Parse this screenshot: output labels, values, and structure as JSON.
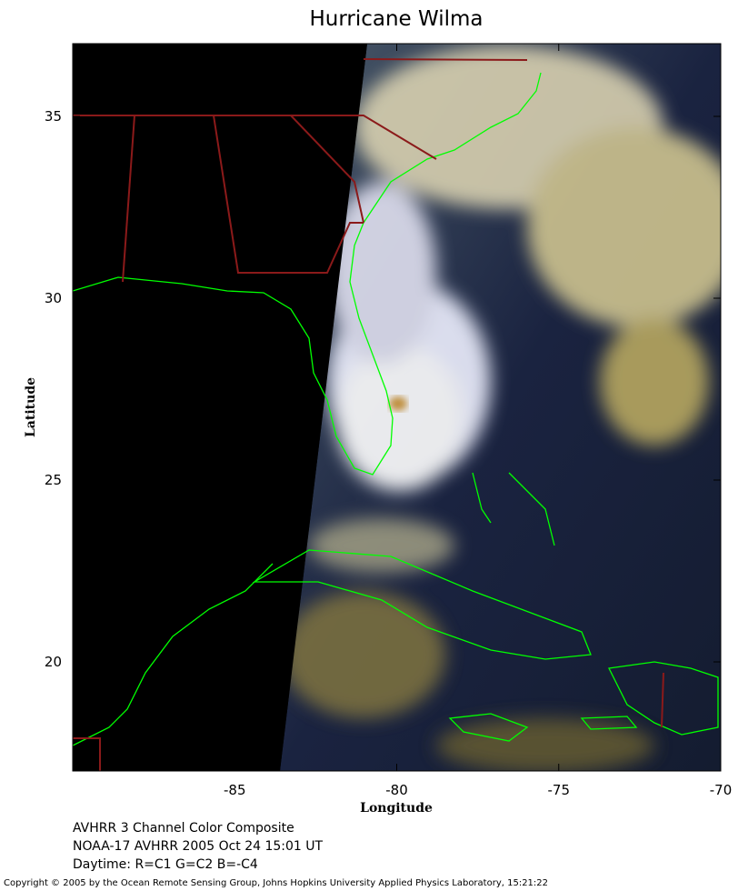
{
  "chart_data": {
    "type": "map",
    "title": "Hurricane Wilma",
    "xlabel": "Longitude",
    "ylabel": "Latitude",
    "xlim": [
      -90,
      -70
    ],
    "ylim": [
      17,
      37
    ],
    "xticks": [
      -85,
      -80,
      -75,
      -70
    ],
    "yticks": [
      20,
      25,
      30,
      35
    ],
    "caption": [
      "AVHRR 3 Channel Color Composite",
      "NOAA-17 AVHRR 2005 Oct 24 15:01 UT",
      "Daytime: R=C1 G=C2 B=-C4"
    ],
    "copyright": "Copyright © 2005 by the Ocean Remote Sensing Group, Johns Hopkins University Applied Physics Laboratory, 15:21:22"
  }
}
